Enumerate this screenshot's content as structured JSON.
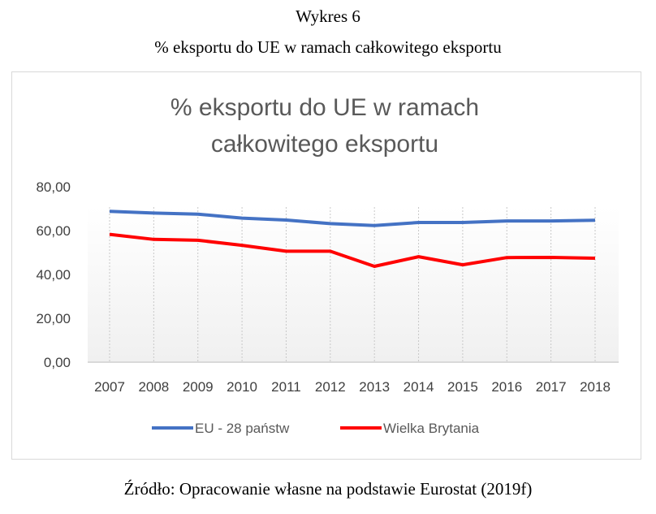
{
  "figure": {
    "label": "Wykres 6",
    "caption": "% eksportu do UE w ramach całkowitego eksportu",
    "source": "Źródło: Opracowanie własne na podstawie Eurostat (2019f)"
  },
  "chart_data": {
    "type": "line",
    "title_lines": [
      "% eksportu do UE w ramach",
      "całkowitego eksportu"
    ],
    "categories": [
      "2007",
      "2008",
      "2009",
      "2010",
      "2011",
      "2012",
      "2013",
      "2014",
      "2015",
      "2016",
      "2017",
      "2018"
    ],
    "series": [
      {
        "name": "EU - 28 państw",
        "color": "#4472C4",
        "values": [
          68.8,
          68.0,
          67.5,
          65.7,
          64.8,
          63.2,
          62.3,
          63.7,
          63.7,
          64.4,
          64.4,
          64.7
        ]
      },
      {
        "name": "Wielka Brytania",
        "color": "#FF0000",
        "values": [
          58.3,
          56.0,
          55.6,
          53.3,
          50.6,
          50.6,
          43.7,
          48.1,
          44.4,
          47.7,
          47.8,
          47.4
        ]
      }
    ],
    "yticks": [
      "0,00",
      "20,00",
      "40,00",
      "60,00",
      "80,00"
    ],
    "ylim": [
      0,
      80
    ],
    "xlabel": "",
    "ylabel": "",
    "grid": "vertical dashed",
    "legend": "bottom"
  }
}
